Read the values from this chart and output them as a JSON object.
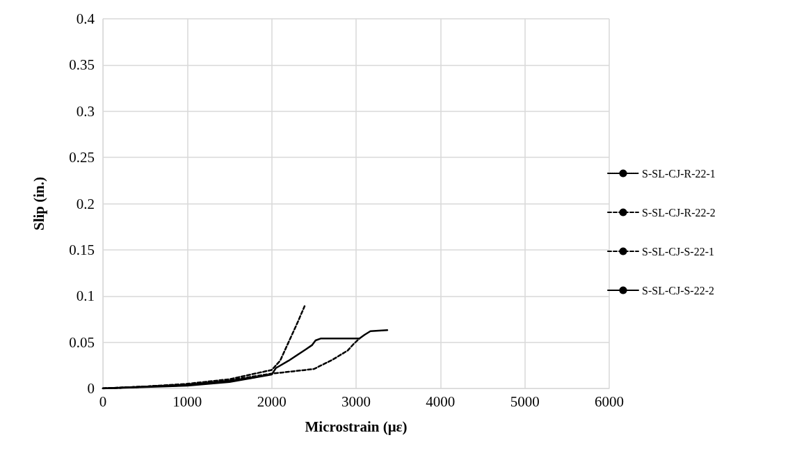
{
  "chart_data": {
    "type": "line",
    "xlabel": "Microstrain (με)",
    "ylabel": "Slip (in.)",
    "xlim": [
      0,
      6000
    ],
    "xticks": [
      0,
      1000,
      2000,
      3000,
      4000,
      5000,
      6000
    ],
    "ylim": [
      0,
      0.4
    ],
    "yticks": [
      0,
      0.05,
      0.1,
      0.15,
      0.2,
      0.25,
      0.3,
      0.35,
      0.4
    ],
    "grid": true,
    "legend": "right",
    "marker": "none",
    "series": [
      {
        "name": "S-SL-CJ-R-22-1",
        "color": "#000000",
        "line_style": "dotted",
        "x": [
          0,
          500,
          1000,
          1500,
          1800
        ],
        "values": [
          0,
          0.002,
          0.004,
          0.008,
          0.012
        ]
      },
      {
        "name": "S-SL-CJ-R-22-2",
        "color": "#000000",
        "line_style": "dashed",
        "x": [
          0,
          500,
          1000,
          1500,
          2000,
          2100,
          2200,
          2300,
          2390
        ],
        "values": [
          0,
          0.002,
          0.005,
          0.01,
          0.02,
          0.03,
          0.05,
          0.07,
          0.089
        ]
      },
      {
        "name": "S-SL-CJ-S-22-1",
        "color": "#000000",
        "line_style": "dashed",
        "x": [
          0,
          1000,
          1500,
          2000,
          2500,
          2720,
          2900,
          2970,
          3040
        ],
        "values": [
          0,
          0.004,
          0.009,
          0.016,
          0.021,
          0.031,
          0.041,
          0.048,
          0.054
        ]
      },
      {
        "name": "S-SL-CJ-S-22-2",
        "color": "#000000",
        "line_style": "solid",
        "x": [
          0,
          1000,
          1500,
          2000,
          2050,
          2200,
          2400,
          2480,
          2520,
          2580,
          3040,
          3100,
          3170,
          3370
        ],
        "values": [
          0,
          0.003,
          0.007,
          0.015,
          0.022,
          0.03,
          0.042,
          0.047,
          0.052,
          0.054,
          0.054,
          0.058,
          0.062,
          0.063
        ]
      }
    ]
  }
}
